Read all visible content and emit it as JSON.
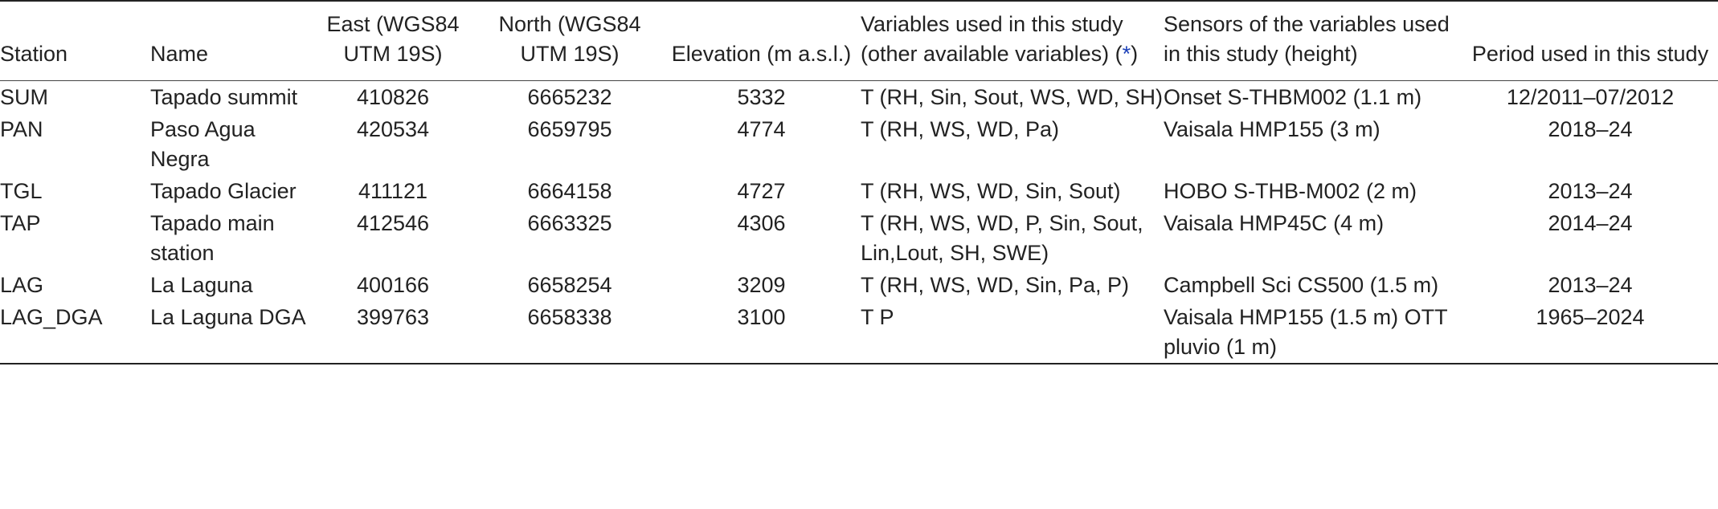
{
  "table": {
    "headers": {
      "station": "Station",
      "name": "Name",
      "east": "East (WGS84 UTM 19S)",
      "north": "North (WGS84 UTM 19S)",
      "elevation": "Elevation (m a.s.l.)",
      "variables_prefix": "Variables used in this study (other available variables) (",
      "variables_link": "*",
      "variables_suffix": ")",
      "sensors": "Sensors of the variables used in this study (height)",
      "period": "Period used in this study"
    },
    "rows": [
      {
        "station": "SUM",
        "name": "Tapado summit",
        "east": "410826",
        "north": "6665232",
        "elevation": "5332",
        "variables": "T (RH, Sin, Sout, WS, WD, SH)",
        "sensors": "Onset S-THBM002 (1.1 m)",
        "period": "12/2011–07/2012"
      },
      {
        "station": "PAN",
        "name": "Paso Agua Negra",
        "east": "420534",
        "north": "6659795",
        "elevation": "4774",
        "variables": "T (RH, WS, WD, Pa)",
        "sensors": "Vaisala HMP155 (3 m)",
        "period": "2018–24"
      },
      {
        "station": "TGL",
        "name": "Tapado Glacier",
        "east": "411121",
        "north": "6664158",
        "elevation": "4727",
        "variables": "T (RH, WS, WD, Sin, Sout)",
        "sensors": "HOBO S-THB-M002 (2 m)",
        "period": "2013–24"
      },
      {
        "station": "TAP",
        "name": "Tapado main station",
        "east": "412546",
        "north": "6663325",
        "elevation": "4306",
        "variables": "T (RH, WS, WD, P, Sin, Sout, Lin,Lout, SH, SWE)",
        "sensors": "Vaisala HMP45C (4 m)",
        "period": "2014–24"
      },
      {
        "station": "LAG",
        "name": "La Laguna",
        "east": "400166",
        "north": "6658254",
        "elevation": "3209",
        "variables": "T (RH, WS, WD, Sin, Pa, P)",
        "sensors": "Campbell Sci CS500 (1.5 m)",
        "period": "2013–24"
      },
      {
        "station": "LAG_DGA",
        "name": "La Laguna DGA",
        "east": "399763",
        "north": "6658338",
        "elevation": "3100",
        "variables": "T P",
        "sensors": "Vaisala HMP155 (1.5 m) OTT pluvio (1 m)",
        "period": "1965–2024"
      }
    ]
  }
}
